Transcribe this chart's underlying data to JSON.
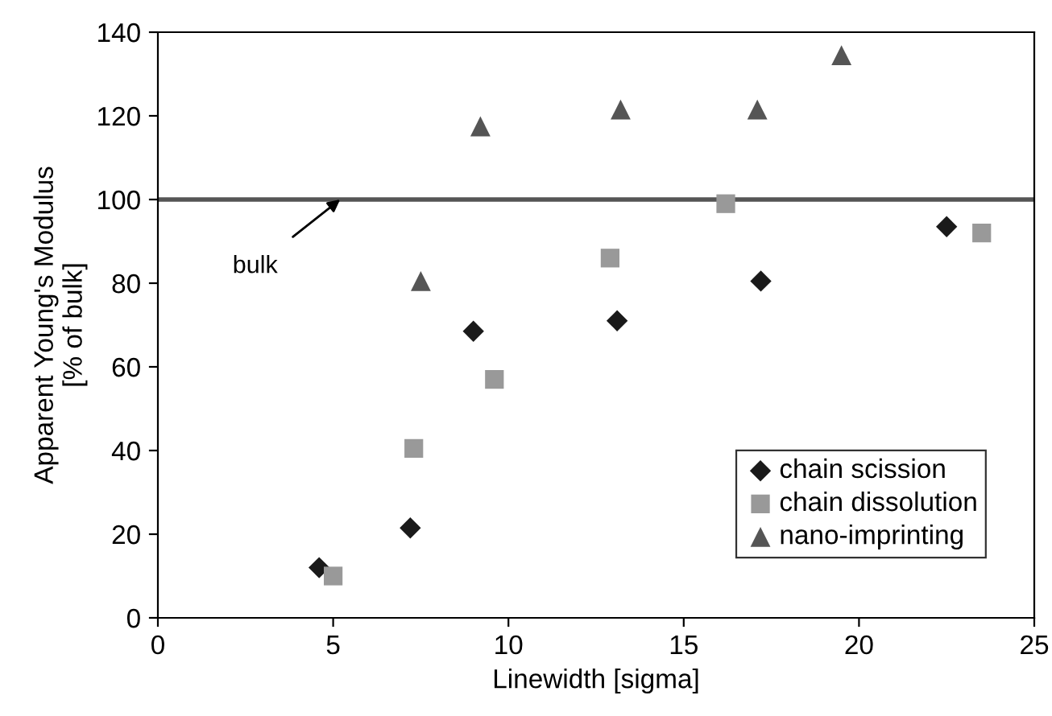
{
  "chart_data": {
    "type": "scatter",
    "xlabel": "Linewidth [sigma]",
    "ylabel": "Apparent Young's Modulus\n[% of bulk]",
    "xlim": [
      0,
      25
    ],
    "xticks": [
      0,
      5,
      10,
      15,
      20,
      25
    ],
    "ylim": [
      0,
      140
    ],
    "yticks": [
      0,
      20,
      40,
      60,
      80,
      100,
      120,
      140
    ],
    "grid": false,
    "legend": "bottom right",
    "series": [
      {
        "name": "chain scission",
        "color": "#1a1a1a",
        "marker": "diamond",
        "x": [
          4.6,
          7.2,
          9.0,
          13.1,
          17.2,
          22.5
        ],
        "values": [
          12,
          21.5,
          68.5,
          71,
          80.5,
          93.5
        ]
      },
      {
        "name": "chain dissolution",
        "color": "#999999",
        "marker": "square",
        "x": [
          5.0,
          7.3,
          9.6,
          12.9,
          16.2,
          23.5
        ],
        "values": [
          10,
          40.5,
          57,
          86,
          99,
          92
        ]
      },
      {
        "name": "nano-imprinting",
        "color": "#555555",
        "marker": "triangle",
        "x": [
          7.5,
          9.2,
          13.2,
          17.1,
          19.5
        ],
        "values": [
          80.5,
          117.5,
          121.5,
          121.5,
          134.5
        ]
      }
    ],
    "ref_lines": [
      {
        "axis": "y",
        "value": 100,
        "color": "#555555",
        "line_style": "solid"
      }
    ],
    "annotations": [
      {
        "text": "bulk",
        "x": 5.2,
        "y": 100
      }
    ]
  }
}
